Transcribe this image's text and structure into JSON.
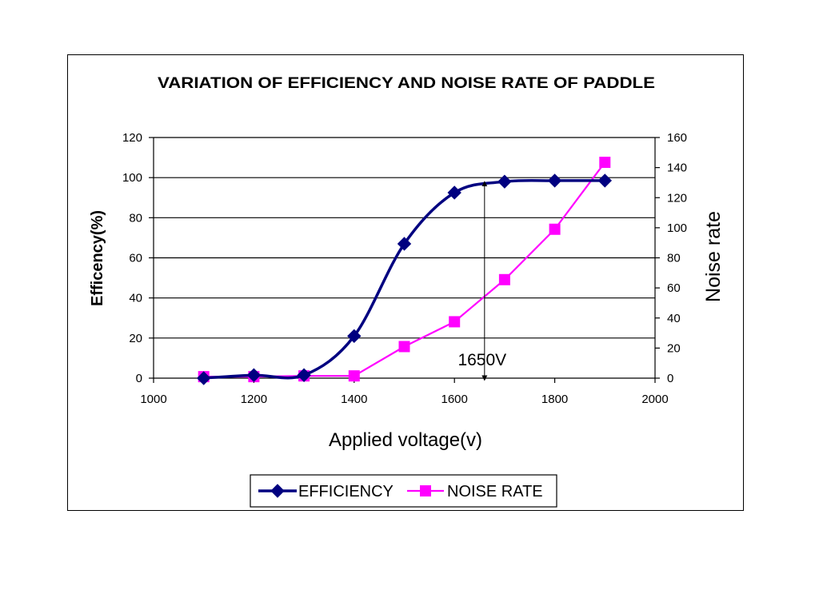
{
  "chart_data": {
    "type": "line",
    "title": "VARIATION OF EFFICIENCY AND NOISE RATE OF PADDLE",
    "xlabel": "Applied voltage(v)",
    "ylabel_left": "Efficency(%)",
    "ylabel_right": "Noise rate",
    "xlim": [
      1000,
      2000
    ],
    "ylim_left": [
      0,
      120
    ],
    "ylim_right": [
      0,
      160
    ],
    "x_ticks": [
      1000,
      1200,
      1400,
      1600,
      1800,
      2000
    ],
    "y_ticks_left": [
      0,
      20,
      40,
      60,
      80,
      100,
      120
    ],
    "y_ticks_right": [
      0,
      20,
      40,
      60,
      80,
      100,
      120,
      140,
      160
    ],
    "grid": "horizontal",
    "legend_position": "bottom",
    "series": [
      {
        "name": "EFFICIENCY",
        "axis": "left",
        "color": "#000080",
        "marker": "diamond",
        "smooth": true,
        "x": [
          1100,
          1200,
          1300,
          1400,
          1500,
          1600,
          1700,
          1800,
          1900
        ],
        "y": [
          0,
          1.5,
          1.5,
          21,
          67,
          92.5,
          98,
          98.5,
          98.5
        ]
      },
      {
        "name": "NOISE RATE",
        "axis": "right",
        "color": "#ff00ff",
        "marker": "square",
        "smooth": false,
        "x": [
          1100,
          1200,
          1300,
          1400,
          1500,
          1600,
          1700,
          1800,
          1900
        ],
        "y": [
          1,
          1,
          1.5,
          1.5,
          21,
          37.5,
          65.5,
          99,
          143.5
        ]
      }
    ],
    "annotation": {
      "text": "1650V",
      "x": 1660,
      "y_from": 0,
      "y_to": 97
    }
  }
}
